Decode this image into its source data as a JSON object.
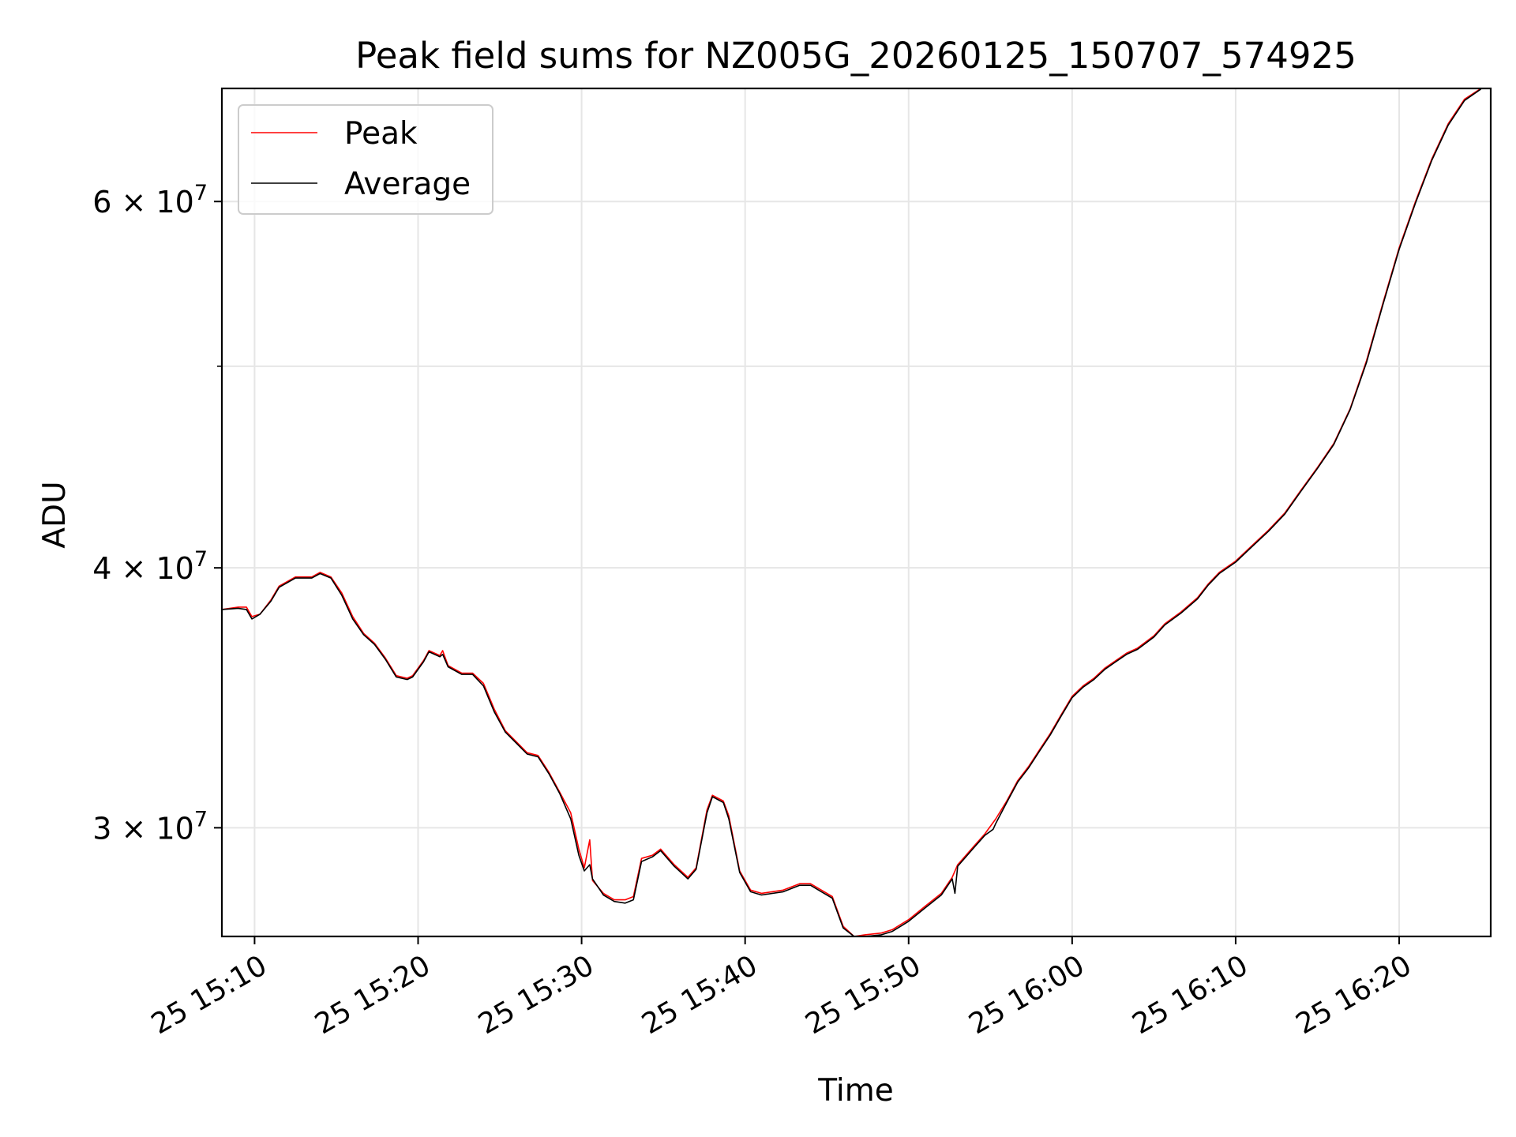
{
  "chart_data": {
    "type": "line",
    "title": "Peak field sums for NZ005G_20260125_150707_574925",
    "xlabel": "Time",
    "ylabel": "ADU",
    "yscale": "log",
    "xlim": [
      "15:08",
      "16:25:36"
    ],
    "ylim": [
      26600000,
      68000000
    ],
    "grid": true,
    "legend_position": "upper-left",
    "x_ticks": [
      "15:10",
      "15:20",
      "15:30",
      "15:40",
      "15:50",
      "16:00",
      "16:10",
      "16:20"
    ],
    "x_tick_labels": [
      "25 15:10",
      "25 15:20",
      "25 15:30",
      "25 15:40",
      "25 15:50",
      "25 16:00",
      "25 16:10",
      "25 16:20"
    ],
    "y_major_ticks": [
      30000000,
      40000000,
      60000000
    ],
    "y_major_tick_labels": [
      {
        "mantissa": "3",
        "times": "×",
        "base": "10",
        "exp": "7"
      },
      {
        "mantissa": "4",
        "times": "×",
        "base": "10",
        "exp": "7"
      },
      {
        "mantissa": "6",
        "times": "×",
        "base": "10",
        "exp": "7"
      }
    ],
    "y_minor_ticks": [
      50000000
    ],
    "series": [
      {
        "name": "Peak",
        "color": "#ff0000",
        "points": [
          [
            "15:08:00",
            38200000
          ],
          [
            "15:09:00",
            38300000
          ],
          [
            "15:09:30",
            38300000
          ],
          [
            "15:09:50",
            37900000
          ],
          [
            "15:10:20",
            38000000
          ],
          [
            "15:11:00",
            38600000
          ],
          [
            "15:11:30",
            39200000
          ],
          [
            "15:12:30",
            39600000
          ],
          [
            "15:13:30",
            39600000
          ],
          [
            "15:14:00",
            39800000
          ],
          [
            "15:14:40",
            39600000
          ],
          [
            "15:15:20",
            38900000
          ],
          [
            "15:16:00",
            37900000
          ],
          [
            "15:16:40",
            37200000
          ],
          [
            "15:17:20",
            36800000
          ],
          [
            "15:18:00",
            36200000
          ],
          [
            "15:18:40",
            35500000
          ],
          [
            "15:19:20",
            35400000
          ],
          [
            "15:19:40",
            35500000
          ],
          [
            "15:20:20",
            36100000
          ],
          [
            "15:20:40",
            36500000
          ],
          [
            "15:21:20",
            36300000
          ],
          [
            "15:21:30",
            36500000
          ],
          [
            "15:21:50",
            35900000
          ],
          [
            "15:22:40",
            35600000
          ],
          [
            "15:23:20",
            35600000
          ],
          [
            "15:24:00",
            35200000
          ],
          [
            "15:24:40",
            34200000
          ],
          [
            "15:25:20",
            33400000
          ],
          [
            "15:26:00",
            33000000
          ],
          [
            "15:26:40",
            32600000
          ],
          [
            "15:27:20",
            32500000
          ],
          [
            "15:28:00",
            31900000
          ],
          [
            "15:28:40",
            31200000
          ],
          [
            "15:29:20",
            30500000
          ],
          [
            "15:29:50",
            29300000
          ],
          [
            "15:30:10",
            28700000
          ],
          [
            "15:30:30",
            29600000
          ],
          [
            "15:30:40",
            28300000
          ],
          [
            "15:31:20",
            27900000
          ],
          [
            "15:32:00",
            27700000
          ],
          [
            "15:32:40",
            27700000
          ],
          [
            "15:33:10",
            27800000
          ],
          [
            "15:33:40",
            29000000
          ],
          [
            "15:34:20",
            29100000
          ],
          [
            "15:34:50",
            29300000
          ],
          [
            "15:35:40",
            28800000
          ],
          [
            "15:36:30",
            28400000
          ],
          [
            "15:37:00",
            28700000
          ],
          [
            "15:37:40",
            30600000
          ],
          [
            "15:38:00",
            31100000
          ],
          [
            "15:38:40",
            30900000
          ],
          [
            "15:39:00",
            30400000
          ],
          [
            "15:39:40",
            28600000
          ],
          [
            "15:40:20",
            28000000
          ],
          [
            "15:41:00",
            27900000
          ],
          [
            "15:42:20",
            28000000
          ],
          [
            "15:43:20",
            28200000
          ],
          [
            "15:44:00",
            28200000
          ],
          [
            "15:44:40",
            28000000
          ],
          [
            "15:45:20",
            27800000
          ],
          [
            "15:46:00",
            26900000
          ],
          [
            "15:46:40",
            26600000
          ],
          [
            "15:47:20",
            26650000
          ],
          [
            "15:48:20",
            26700000
          ],
          [
            "15:49:00",
            26800000
          ],
          [
            "15:50:00",
            27100000
          ],
          [
            "15:51:00",
            27500000
          ],
          [
            "15:52:00",
            27900000
          ],
          [
            "15:52:40",
            28400000
          ],
          [
            "15:53:00",
            28800000
          ],
          [
            "15:54:00",
            29400000
          ],
          [
            "15:54:40",
            29800000
          ],
          [
            "15:55:20",
            30300000
          ],
          [
            "15:56:00",
            30900000
          ],
          [
            "15:56:40",
            31600000
          ],
          [
            "15:57:20",
            32100000
          ],
          [
            "15:58:00",
            32700000
          ],
          [
            "15:58:40",
            33300000
          ],
          [
            "15:59:20",
            34000000
          ],
          [
            "16:00:00",
            34700000
          ],
          [
            "16:00:40",
            35100000
          ],
          [
            "16:01:20",
            35400000
          ],
          [
            "16:02:00",
            35800000
          ],
          [
            "16:02:40",
            36100000
          ],
          [
            "16:03:20",
            36400000
          ],
          [
            "16:04:00",
            36600000
          ],
          [
            "16:05:00",
            37100000
          ],
          [
            "16:05:40",
            37600000
          ],
          [
            "16:06:40",
            38100000
          ],
          [
            "16:07:40",
            38700000
          ],
          [
            "16:08:20",
            39300000
          ],
          [
            "16:09:00",
            39800000
          ],
          [
            "16:10:00",
            40300000
          ],
          [
            "16:11:00",
            41000000
          ],
          [
            "16:12:00",
            41700000
          ],
          [
            "16:13:00",
            42500000
          ],
          [
            "16:14:00",
            43600000
          ],
          [
            "16:15:00",
            44700000
          ],
          [
            "16:16:00",
            45900000
          ],
          [
            "16:17:00",
            47700000
          ],
          [
            "16:18:00",
            50300000
          ],
          [
            "16:19:00",
            53600000
          ],
          [
            "16:20:00",
            57000000
          ],
          [
            "16:21:00",
            60000000
          ],
          [
            "16:22:00",
            62900000
          ],
          [
            "16:23:00",
            65400000
          ],
          [
            "16:24:00",
            67200000
          ],
          [
            "16:25:00",
            68000000
          ]
        ]
      },
      {
        "name": "Average",
        "color": "#000000",
        "points": [
          [
            "15:08:00",
            38200000
          ],
          [
            "15:09:00",
            38250000
          ],
          [
            "15:09:30",
            38200000
          ],
          [
            "15:09:50",
            37800000
          ],
          [
            "15:10:20",
            38000000
          ],
          [
            "15:11:00",
            38550000
          ],
          [
            "15:11:30",
            39150000
          ],
          [
            "15:12:30",
            39550000
          ],
          [
            "15:13:30",
            39550000
          ],
          [
            "15:14:00",
            39750000
          ],
          [
            "15:14:40",
            39550000
          ],
          [
            "15:15:20",
            38800000
          ],
          [
            "15:16:00",
            37800000
          ],
          [
            "15:16:40",
            37150000
          ],
          [
            "15:17:20",
            36750000
          ],
          [
            "15:18:00",
            36150000
          ],
          [
            "15:18:40",
            35450000
          ],
          [
            "15:19:20",
            35350000
          ],
          [
            "15:19:40",
            35450000
          ],
          [
            "15:20:20",
            36050000
          ],
          [
            "15:20:40",
            36450000
          ],
          [
            "15:21:20",
            36250000
          ],
          [
            "15:21:30",
            36350000
          ],
          [
            "15:21:50",
            35850000
          ],
          [
            "15:22:40",
            35550000
          ],
          [
            "15:23:20",
            35550000
          ],
          [
            "15:24:00",
            35100000
          ],
          [
            "15:24:40",
            34100000
          ],
          [
            "15:25:20",
            33350000
          ],
          [
            "15:26:00",
            32950000
          ],
          [
            "15:26:40",
            32550000
          ],
          [
            "15:27:20",
            32450000
          ],
          [
            "15:28:00",
            31850000
          ],
          [
            "15:28:40",
            31150000
          ],
          [
            "15:29:20",
            30300000
          ],
          [
            "15:29:50",
            29100000
          ],
          [
            "15:30:10",
            28600000
          ],
          [
            "15:30:30",
            28800000
          ],
          [
            "15:30:40",
            28350000
          ],
          [
            "15:31:20",
            27850000
          ],
          [
            "15:32:00",
            27650000
          ],
          [
            "15:32:40",
            27600000
          ],
          [
            "15:33:10",
            27700000
          ],
          [
            "15:33:40",
            28900000
          ],
          [
            "15:34:20",
            29050000
          ],
          [
            "15:34:50",
            29250000
          ],
          [
            "15:35:40",
            28750000
          ],
          [
            "15:36:30",
            28350000
          ],
          [
            "15:37:00",
            28650000
          ],
          [
            "15:37:40",
            30500000
          ],
          [
            "15:38:00",
            31050000
          ],
          [
            "15:38:40",
            30850000
          ],
          [
            "15:39:00",
            30300000
          ],
          [
            "15:39:40",
            28550000
          ],
          [
            "15:40:20",
            27950000
          ],
          [
            "15:41:00",
            27850000
          ],
          [
            "15:42:20",
            27950000
          ],
          [
            "15:43:20",
            28150000
          ],
          [
            "15:44:00",
            28150000
          ],
          [
            "15:44:40",
            27950000
          ],
          [
            "15:45:20",
            27750000
          ],
          [
            "15:46:00",
            26850000
          ],
          [
            "15:46:40",
            26600000
          ],
          [
            "15:47:20",
            26600000
          ],
          [
            "15:48:20",
            26650000
          ],
          [
            "15:49:00",
            26750000
          ],
          [
            "15:50:00",
            27050000
          ],
          [
            "15:51:00",
            27450000
          ],
          [
            "15:52:00",
            27850000
          ],
          [
            "15:52:40",
            28350000
          ],
          [
            "15:52:50",
            27900000
          ],
          [
            "15:53:00",
            28750000
          ],
          [
            "15:54:00",
            29350000
          ],
          [
            "15:54:40",
            29750000
          ],
          [
            "15:55:10",
            29950000
          ],
          [
            "15:55:20",
            30150000
          ],
          [
            "15:56:00",
            30850000
          ],
          [
            "15:56:40",
            31550000
          ],
          [
            "15:57:20",
            32050000
          ],
          [
            "15:58:00",
            32650000
          ],
          [
            "15:58:40",
            33250000
          ],
          [
            "15:59:20",
            33950000
          ],
          [
            "16:00:00",
            34650000
          ],
          [
            "16:00:40",
            35050000
          ],
          [
            "16:01:20",
            35350000
          ],
          [
            "16:02:00",
            35750000
          ],
          [
            "16:02:40",
            36050000
          ],
          [
            "16:03:20",
            36350000
          ],
          [
            "16:04:00",
            36550000
          ],
          [
            "16:05:00",
            37050000
          ],
          [
            "16:05:40",
            37550000
          ],
          [
            "16:06:40",
            38050000
          ],
          [
            "16:07:40",
            38650000
          ],
          [
            "16:08:20",
            39250000
          ],
          [
            "16:09:00",
            39750000
          ],
          [
            "16:10:00",
            40250000
          ],
          [
            "16:11:00",
            40950000
          ],
          [
            "16:12:00",
            41650000
          ],
          [
            "16:13:00",
            42450000
          ],
          [
            "16:14:00",
            43550000
          ],
          [
            "16:15:00",
            44650000
          ],
          [
            "16:16:00",
            45850000
          ],
          [
            "16:17:00",
            47650000
          ],
          [
            "16:18:00",
            50200000
          ],
          [
            "16:19:00",
            53500000
          ],
          [
            "16:20:00",
            56900000
          ],
          [
            "16:21:00",
            59900000
          ],
          [
            "16:22:00",
            62800000
          ],
          [
            "16:23:00",
            65300000
          ],
          [
            "16:24:00",
            67100000
          ],
          [
            "16:25:00",
            67950000
          ]
        ]
      }
    ]
  }
}
